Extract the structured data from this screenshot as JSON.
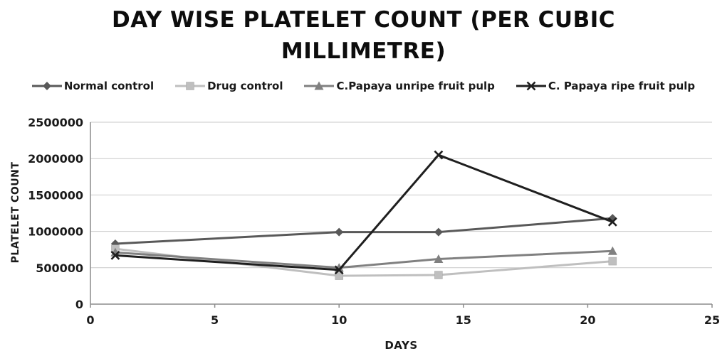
{
  "title": "DAY WISE PLATELET COUNT (PER CUBIC MILLIMETRE)",
  "chart_data": {
    "type": "line",
    "x": [
      1,
      10,
      14,
      21
    ],
    "xlabel": "DAYS",
    "ylabel": "PLATELET COUNT",
    "xlim": [
      0,
      25
    ],
    "ylim": [
      0,
      2500000
    ],
    "x_ticks": [
      0,
      5,
      10,
      15,
      20,
      25
    ],
    "y_ticks": [
      0,
      500000,
      1000000,
      1500000,
      2000000,
      2500000
    ],
    "grid": "horizontal",
    "legend_position": "top",
    "series": [
      {
        "name": "Normal control",
        "marker": "diamond",
        "color": "#595959",
        "values": [
          830000,
          990000,
          990000,
          1180000
        ]
      },
      {
        "name": "Drug control",
        "marker": "square",
        "color": "#bfbfbf",
        "values": [
          760000,
          390000,
          400000,
          590000
        ]
      },
      {
        "name": "C.Papaya unripe fruit pulp",
        "marker": "triangle",
        "color": "#808080",
        "values": [
          710000,
          500000,
          620000,
          730000
        ]
      },
      {
        "name": "C. Papaya ripe fruit pulp",
        "marker": "x",
        "color": "#1f1f1f",
        "values": [
          670000,
          470000,
          2050000,
          1130000
        ]
      }
    ]
  }
}
